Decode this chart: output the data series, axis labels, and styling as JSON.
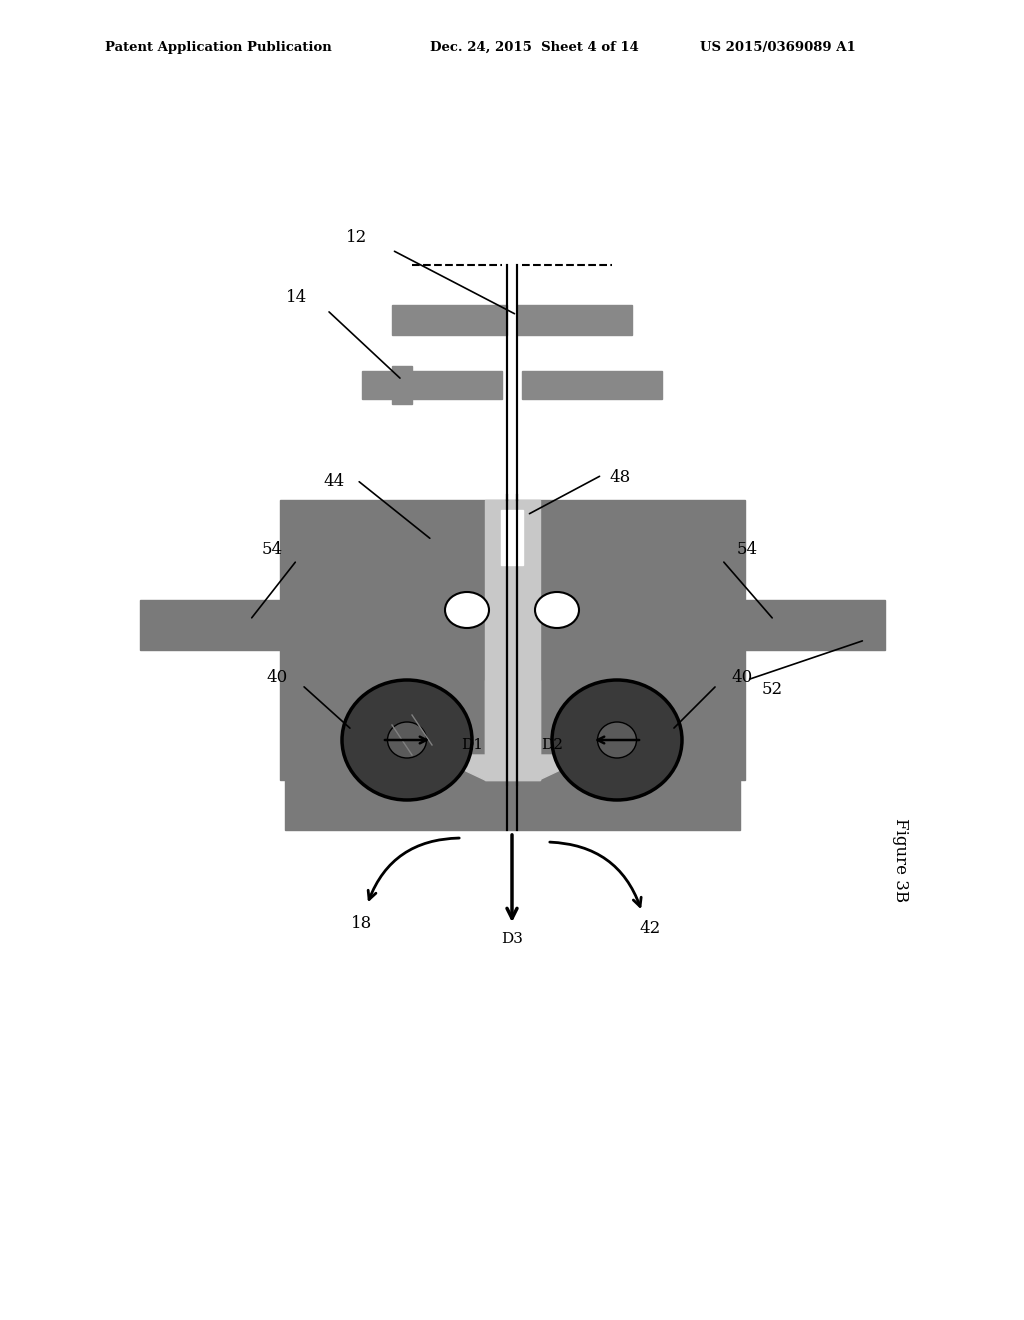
{
  "bg_color": "#ffffff",
  "gray": "#7a7a7a",
  "light_gray": "#9a9a9a",
  "dark_roller": "#4a4a4a",
  "black": "#000000",
  "white": "#ffffff",
  "header_left": "Patent Application Publication",
  "header_mid": "Dec. 24, 2015  Sheet 4 of 14",
  "header_right": "US 2015/0369089 A1",
  "figure_label": "Figure 3B"
}
